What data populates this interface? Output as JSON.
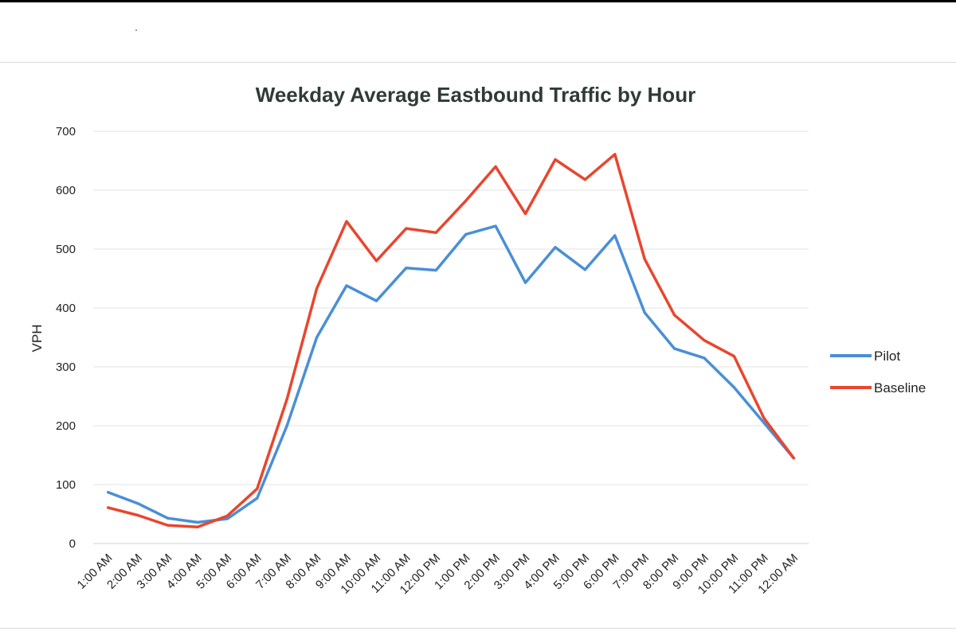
{
  "chart_data": {
    "type": "line",
    "title": "Weekday Average Eastbound Traffic by Hour",
    "xlabel": "",
    "ylabel": "VPH",
    "ylim": [
      0,
      700
    ],
    "yticks": [
      0,
      100,
      200,
      300,
      400,
      500,
      600,
      700
    ],
    "grid": true,
    "legend_position": "right",
    "categories": [
      "1:00 AM",
      "2:00 AM",
      "3:00 AM",
      "4:00 AM",
      "5:00 AM",
      "6:00 AM",
      "7:00 AM",
      "8:00 AM",
      "9:00 AM",
      "10:00 AM",
      "11:00 AM",
      "12:00 PM",
      "1:00 PM",
      "2:00 PM",
      "3:00 PM",
      "4:00 PM",
      "5:00 PM",
      "6:00 PM",
      "7:00 PM",
      "8:00 PM",
      "9:00 PM",
      "10:00 PM",
      "11:00 PM",
      "12:00 AM"
    ],
    "series": [
      {
        "name": "Pilot",
        "color": "#4a8fd6",
        "values": [
          87,
          68,
          43,
          36,
          42,
          77,
          200,
          350,
          438,
          412,
          468,
          464,
          525,
          539,
          443,
          503,
          465,
          523,
          392,
          331,
          315,
          265,
          205,
          145
        ]
      },
      {
        "name": "Baseline",
        "color": "#e8462e",
        "values": [
          61,
          48,
          31,
          28,
          47,
          93,
          245,
          433,
          547,
          480,
          535,
          528,
          582,
          640,
          560,
          652,
          618,
          661,
          483,
          388,
          345,
          318,
          213,
          145
        ]
      }
    ]
  }
}
